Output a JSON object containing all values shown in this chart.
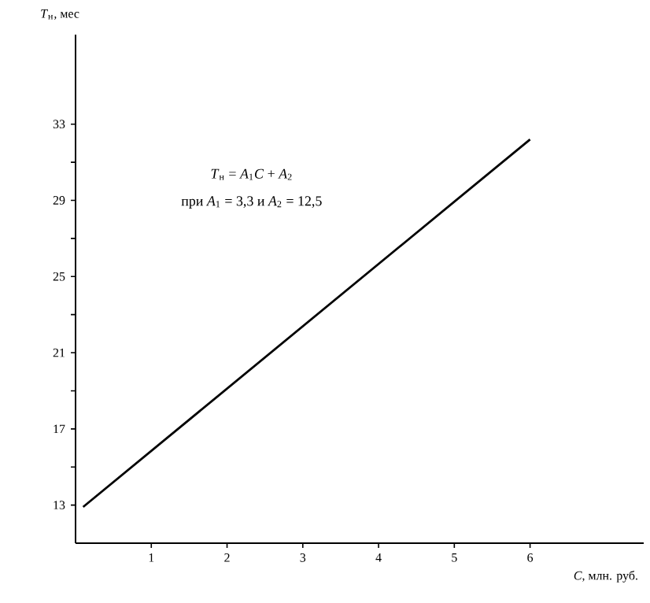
{
  "chart_data": {
    "type": "line",
    "xlabel": "*C*, млн. руб.",
    "ylabel": "*T*$_{н}$, мес",
    "annotations": [
      "*T*$_{н}$ = *A*$_{1}$*C* + *A*$_{2}$",
      "при *A*$_{1}$ = 3,3  и  *A*$_{2}$ = 12,5"
    ],
    "x": [
      0.1,
      6
    ],
    "series": [
      {
        "color": "#000000",
        "values": [
          12.9,
          32.2
        ]
      }
    ],
    "xlim": [
      0,
      7.5
    ],
    "ylim": [
      11,
      37.7
    ],
    "xticks": [
      1,
      2,
      3,
      4,
      5,
      6
    ],
    "yticks": [
      13,
      {
        "value": 15,
        "label": null
      },
      17,
      {
        "value": 19,
        "label": null
      },
      21,
      {
        "value": 23,
        "label": null
      },
      25,
      {
        "value": 27,
        "label": null
      },
      29,
      {
        "value": 31,
        "label": null
      },
      33
    ],
    "grid": false,
    "marker": "none",
    "line_style": "solid"
  }
}
